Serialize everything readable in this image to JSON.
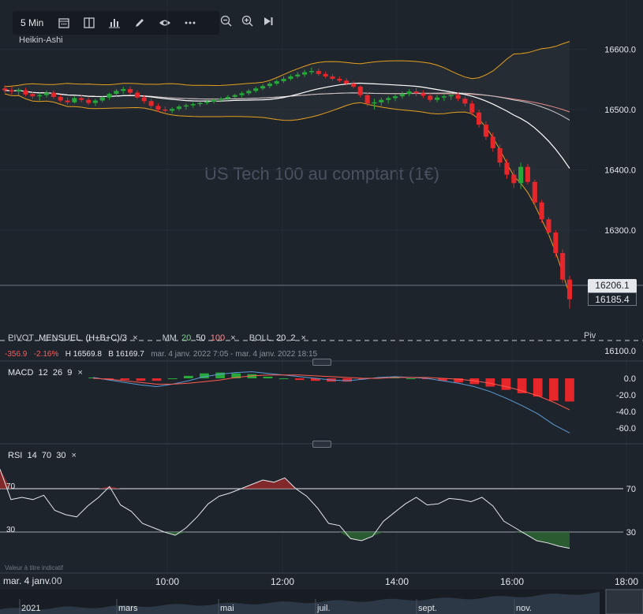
{
  "toolbar": {
    "timeframe": "5 Min",
    "chart_type": "Heikin-Ashi",
    "icons": [
      "calendar-icon",
      "layout-icon",
      "bar-chart-icon",
      "pencil-icon",
      "eye-icon",
      "more-icon"
    ],
    "zoom_icons": [
      "zoom-out-icon",
      "zoom-in-icon",
      "skip-to-end-icon"
    ]
  },
  "watermark": "US Tech 100 au comptant (1€)",
  "legend": {
    "pivot": {
      "name": "PIVOT",
      "period": "MENSUEL",
      "formula": "(H+B+C)/3"
    },
    "mm": {
      "name": "MM",
      "p1": "20",
      "p2": "50",
      "p3": "100"
    },
    "boll": {
      "name": "BOLL",
      "p1": "20",
      "p2": "2"
    },
    "close_icon": "×"
  },
  "info": {
    "change": "-356.9",
    "change_pct": "-2.16%",
    "high": "H 16569.8",
    "low": "B 16169.7",
    "range": "mar. 4 janv. 2022 7:05 - mar. 4 janv. 2022 18:15"
  },
  "pivot_label": "Piv",
  "price_tags": {
    "last": "16206.1",
    "current": "16185.4"
  },
  "macd": {
    "name": "MACD",
    "p1": "12",
    "p2": "26",
    "p3": "9"
  },
  "rsi": {
    "name": "RSI",
    "p1": "14",
    "p2": "70",
    "p3": "30",
    "level_high": "70",
    "level_low": "30"
  },
  "disclaimer": "Valeur à titre indicatif",
  "time_axis": {
    "date_label": "mar. 4 janv.",
    "first_tick_partial": "00",
    "ticks": [
      "10:00",
      "12:00",
      "14:00",
      "16:00",
      "18:00"
    ]
  },
  "navigator": {
    "labels": [
      "2021",
      "mars",
      "mai",
      "juil.",
      "sept.",
      "nov."
    ]
  },
  "colors": {
    "bg": "#1e242c",
    "up": "#27a83a",
    "down": "#e5262b",
    "boll": "#e5a01f",
    "ma20": "#ffffff",
    "ma50": "#c7c7c7",
    "ma100": "#e08a8a",
    "macd_line": "#5b9bd5",
    "signal_line": "#ff5a4f"
  },
  "chart_data": [
    {
      "type": "candlestick",
      "variant": "Heikin-Ashi",
      "title": "US Tech 100 au comptant (1€)",
      "x_range": [
        "07:05",
        "18:15"
      ],
      "y_ticks": [
        16100.0,
        16300.0,
        16400.0,
        16500.0,
        16600.0
      ],
      "y_ticks_labels": [
        "16100.0",
        "16300.0",
        "16400.0",
        "16500.0",
        "16600.0"
      ],
      "ylim": [
        16100,
        16600
      ],
      "current_price": 16185.4,
      "last_price": 16206.1,
      "ohlc_5min": [
        [
          "07:05",
          16535,
          16540,
          16528,
          16532
        ],
        [
          "07:10",
          16532,
          16538,
          16525,
          16530
        ],
        [
          "07:15",
          16530,
          16536,
          16524,
          16533
        ],
        [
          "07:20",
          16532,
          16536,
          16522,
          16525
        ],
        [
          "07:25",
          16526,
          16530,
          16518,
          16522
        ],
        [
          "07:30",
          16522,
          16528,
          16515,
          16524
        ],
        [
          "07:35",
          16524,
          16532,
          16520,
          16528
        ],
        [
          "07:40",
          16528,
          16532,
          16518,
          16521
        ],
        [
          "07:45",
          16521,
          16525,
          16512,
          16515
        ],
        [
          "07:50",
          16515,
          16520,
          16508,
          16512
        ],
        [
          "07:55",
          16512,
          16522,
          16510,
          16519
        ],
        [
          "08:00",
          16519,
          16524,
          16512,
          16516
        ],
        [
          "08:05",
          16516,
          16520,
          16508,
          16511
        ],
        [
          "08:10",
          16511,
          16518,
          16506,
          16515
        ],
        [
          "08:15",
          16515,
          16522,
          16512,
          16520
        ],
        [
          "08:20",
          16520,
          16528,
          16516,
          16526
        ],
        [
          "08:25",
          16526,
          16534,
          16522,
          16531
        ],
        [
          "08:30",
          16531,
          16538,
          16526,
          16534
        ],
        [
          "08:35",
          16534,
          16538,
          16524,
          16528
        ],
        [
          "08:40",
          16528,
          16532,
          16518,
          16520
        ],
        [
          "08:45",
          16520,
          16524,
          16510,
          16514
        ],
        [
          "08:50",
          16514,
          16518,
          16502,
          16506
        ],
        [
          "08:55",
          16506,
          16510,
          16496,
          16500
        ],
        [
          "09:00",
          16500,
          16505,
          16493,
          16498
        ],
        [
          "09:05",
          16498,
          16504,
          16494,
          16501
        ],
        [
          "09:10",
          16501,
          16508,
          16498,
          16505
        ],
        [
          "09:15",
          16505,
          16510,
          16500,
          16507
        ],
        [
          "09:20",
          16507,
          16512,
          16503,
          16509
        ],
        [
          "09:25",
          16509,
          16514,
          16505,
          16511
        ],
        [
          "09:30",
          16511,
          16516,
          16508,
          16513
        ],
        [
          "09:35",
          16513,
          16519,
          16510,
          16516
        ],
        [
          "09:40",
          16516,
          16521,
          16512,
          16518
        ],
        [
          "09:45",
          16518,
          16524,
          16515,
          16521
        ],
        [
          "09:50",
          16521,
          16526,
          16518,
          16524
        ],
        [
          "09:55",
          16524,
          16530,
          16520,
          16527
        ],
        [
          "10:00",
          16527,
          16534,
          16524,
          16531
        ],
        [
          "10:05",
          16531,
          16538,
          16528,
          16535
        ],
        [
          "10:10",
          16535,
          16542,
          16532,
          16539
        ],
        [
          "10:15",
          16539,
          16546,
          16535,
          16543
        ],
        [
          "10:20",
          16543,
          16550,
          16540,
          16547
        ],
        [
          "10:25",
          16547,
          16555,
          16544,
          16551
        ],
        [
          "10:30",
          16551,
          16558,
          16548,
          16555
        ],
        [
          "10:35",
          16555,
          16562,
          16552,
          16558
        ],
        [
          "10:40",
          16558,
          16566,
          16554,
          16562
        ],
        [
          "10:45",
          16562,
          16569.8,
          16558,
          16564
        ],
        [
          "10:50",
          16564,
          16568,
          16556,
          16559
        ],
        [
          "10:55",
          16559,
          16563,
          16552,
          16555
        ],
        [
          "11:00",
          16555,
          16559,
          16548,
          16551
        ],
        [
          "11:05",
          16551,
          16555,
          16545,
          16548
        ],
        [
          "11:10",
          16548,
          16552,
          16540,
          16543
        ],
        [
          "11:15",
          16543,
          16547,
          16535,
          16538
        ],
        [
          "11:20",
          16538,
          16540,
          16520,
          16524
        ],
        [
          "11:25",
          16524,
          16528,
          16505,
          16510
        ],
        [
          "11:30",
          16510,
          16518,
          16500,
          16512
        ],
        [
          "11:35",
          16512,
          16520,
          16506,
          16516
        ],
        [
          "11:40",
          16516,
          16522,
          16510,
          16519
        ],
        [
          "11:45",
          16519,
          16526,
          16514,
          16522
        ],
        [
          "11:50",
          16522,
          16530,
          16518,
          16526
        ],
        [
          "11:55",
          16526,
          16534,
          16522,
          16530
        ],
        [
          "12:00",
          16530,
          16536,
          16522,
          16527
        ],
        [
          "12:05",
          16527,
          16532,
          16519,
          16523
        ],
        [
          "12:10",
          16523,
          16527,
          16512,
          16516
        ],
        [
          "12:15",
          16516,
          16524,
          16512,
          16520
        ],
        [
          "12:20",
          16520,
          16526,
          16514,
          16522
        ],
        [
          "12:25",
          16522,
          16528,
          16516,
          16524
        ],
        [
          "12:30",
          16524,
          16528,
          16514,
          16518
        ],
        [
          "12:35",
          16518,
          16522,
          16505,
          16510
        ],
        [
          "12:40",
          16510,
          16515,
          16490,
          16495
        ],
        [
          "12:45",
          16495,
          16500,
          16470,
          16475
        ],
        [
          "12:50",
          16475,
          16480,
          16450,
          16455
        ],
        [
          "12:55",
          16455,
          16462,
          16430,
          16436
        ],
        [
          "13:00",
          16436,
          16442,
          16405,
          16412
        ],
        [
          "13:05",
          16412,
          16418,
          16385,
          16392
        ],
        [
          "13:10",
          16392,
          16400,
          16370,
          16378
        ],
        [
          "13:15",
          16378,
          16412,
          16368,
          16405
        ],
        [
          "13:20",
          16405,
          16410,
          16376,
          16380
        ],
        [
          "13:25",
          16380,
          16384,
          16340,
          16346
        ],
        [
          "13:30",
          16346,
          16350,
          16312,
          16318
        ],
        [
          "13:35",
          16318,
          16322,
          16290,
          16296
        ],
        [
          "13:40",
          16296,
          16300,
          16255,
          16262
        ],
        [
          "13:45",
          16262,
          16268,
          16212,
          16218
        ],
        [
          "13:50",
          16218,
          16224,
          16169.7,
          16185.4
        ]
      ]
    },
    {
      "type": "line",
      "name": "MACD",
      "params": [
        12,
        26,
        9
      ],
      "y_ticks": [
        0.0,
        -20.0,
        -40.0,
        -60.0
      ],
      "y_ticks_labels": [
        "0.0",
        "-20.0",
        "-40.0",
        "-60.0"
      ],
      "ylim": [
        -68,
        12
      ],
      "series": [
        {
          "name": "macd",
          "values": [
            1,
            -2,
            -5,
            -8,
            -10,
            -7,
            -3,
            2,
            5,
            7,
            8,
            6,
            4,
            2,
            0,
            -2,
            -3,
            -1,
            1,
            2,
            1,
            0,
            -3,
            -6,
            -10,
            -16,
            -24,
            -33,
            -43,
            -56,
            -66
          ]
        },
        {
          "name": "signal",
          "values": [
            0,
            -1,
            -3,
            -5,
            -7,
            -7,
            -6,
            -4,
            -2,
            1,
            3,
            4,
            4,
            4,
            3,
            2,
            1,
            0,
            0,
            1,
            1,
            1,
            0,
            -1,
            -3,
            -6,
            -10,
            -15,
            -21,
            -29,
            -38
          ]
        },
        {
          "name": "histogram",
          "values": [
            1,
            -1,
            -2,
            -3,
            -3,
            0,
            3,
            6,
            7,
            6,
            5,
            2,
            0,
            -2,
            -3,
            -4,
            -4,
            -1,
            1,
            1,
            0,
            -1,
            -3,
            -5,
            -7,
            -10,
            -14,
            -18,
            -22,
            -27,
            -28
          ]
        }
      ]
    },
    {
      "type": "line",
      "name": "RSI",
      "params": [
        14,
        70,
        30
      ],
      "y_ticks": [
        70,
        30
      ],
      "y_ticks_labels": [
        "70",
        "30"
      ],
      "ylim": [
        0,
        100
      ],
      "series": [
        {
          "name": "rsi",
          "values": [
            88,
            60,
            62,
            60,
            64,
            50,
            46,
            44,
            54,
            62,
            72,
            55,
            49,
            38,
            34,
            30,
            27,
            34,
            44,
            56,
            63,
            66,
            70,
            74,
            78,
            76,
            80,
            70,
            63,
            52,
            38,
            36,
            24,
            22,
            26,
            40,
            48,
            56,
            62,
            55,
            56,
            61,
            60,
            58,
            62,
            54,
            40,
            34,
            28,
            22,
            20,
            17,
            15
          ]
        }
      ]
    }
  ]
}
